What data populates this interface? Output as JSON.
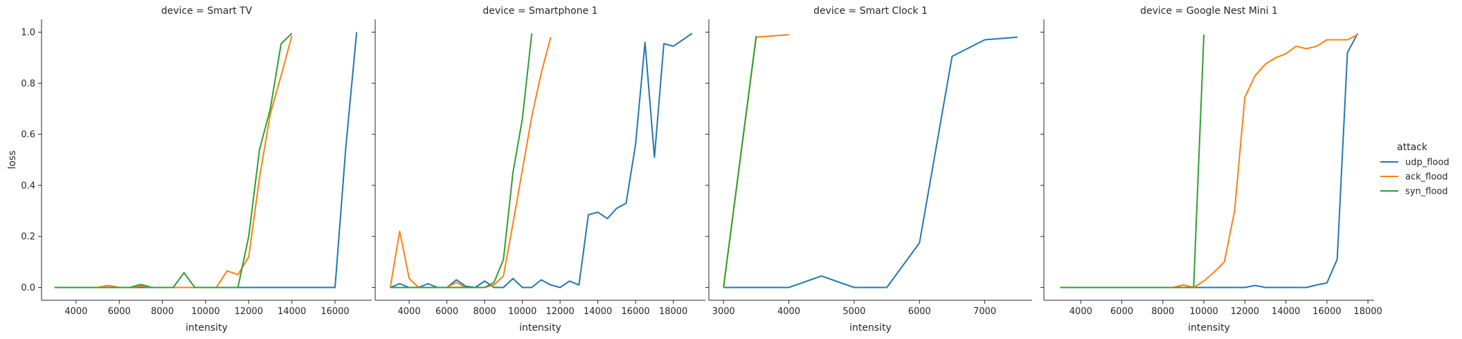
{
  "chart_data": {
    "type": "line",
    "xlabel": "intensity",
    "ylabel": "loss",
    "ylim": [
      -0.05,
      1.05
    ],
    "yticks": [
      0.0,
      0.2,
      0.4,
      0.6,
      0.8,
      1.0
    ],
    "ytick_labels": [
      "0.0",
      "0.2",
      "0.4",
      "0.6",
      "0.8",
      "1.0"
    ],
    "sharey": true,
    "grid": false,
    "legend": {
      "title": "attack",
      "placement": "right",
      "entries": [
        {
          "name": "udp_flood",
          "color": "#1f77b4"
        },
        {
          "name": "ack_flood",
          "color": "#ff7f0e"
        },
        {
          "name": "syn_flood",
          "color": "#2ca02c"
        }
      ]
    },
    "facets": [
      {
        "title": "device = Smart TV",
        "xlim": [
          2400,
          17700
        ],
        "xticks": [
          4000,
          6000,
          8000,
          10000,
          12000,
          14000,
          16000
        ],
        "series": [
          {
            "name": "udp_flood",
            "x": [
              3000,
              4000,
              5000,
              6000,
              7000,
              8000,
              9000,
              10000,
              11000,
              12000,
              13000,
              14000,
              15000,
              16000,
              16500,
              17000
            ],
            "y": [
              0,
              0,
              0,
              0,
              0,
              0,
              0,
              0,
              0,
              0,
              0,
              0,
              0,
              0,
              0.55,
              1.0
            ]
          },
          {
            "name": "ack_flood",
            "x": [
              3000,
              3500,
              4000,
              4500,
              5000,
              5500,
              6000,
              6500,
              7000,
              7500,
              8000,
              8500,
              9000,
              9500,
              10000,
              10500,
              11000,
              11500,
              12000,
              12500,
              13000,
              13500,
              14000
            ],
            "y": [
              0,
              0,
              0,
              0,
              0,
              0.008,
              0,
              0,
              0.006,
              0,
              0,
              0,
              0,
              0,
              0,
              0,
              0.065,
              0.05,
              0.12,
              0.43,
              0.68,
              0.83,
              0.985
            ]
          },
          {
            "name": "syn_flood",
            "x": [
              3000,
              3500,
              4000,
              4500,
              5000,
              5500,
              6000,
              6500,
              7000,
              7500,
              8000,
              8500,
              9000,
              9500,
              10000,
              10500,
              11000,
              11500,
              12000,
              12500,
              13000,
              13500,
              14000
            ],
            "y": [
              0,
              0,
              0,
              0,
              0,
              0,
              0,
              0,
              0.012,
              0,
              0,
              0,
              0.058,
              0,
              0,
              0,
              0,
              0,
              0.2,
              0.54,
              0.7,
              0.955,
              0.995
            ]
          }
        ]
      },
      {
        "title": "device = Smartphone 1",
        "xlim": [
          2200,
          19700
        ],
        "xticks": [
          4000,
          6000,
          8000,
          10000,
          12000,
          14000,
          16000,
          18000
        ],
        "series": [
          {
            "name": "udp_flood",
            "x": [
              3000,
              3500,
              4000,
              4500,
              5000,
              5500,
              6000,
              6500,
              7000,
              7500,
              8000,
              8500,
              9000,
              9500,
              10000,
              10500,
              11000,
              11500,
              12000,
              12500,
              13000,
              13500,
              14000,
              14500,
              15000,
              15500,
              16000,
              16500,
              17000,
              17500,
              18000,
              19000
            ],
            "y": [
              0,
              0.015,
              0,
              0,
              0.015,
              0,
              0,
              0.03,
              0.005,
              0,
              0.025,
              0,
              0,
              0.035,
              0,
              0,
              0.03,
              0.01,
              0,
              0.025,
              0.01,
              0.285,
              0.295,
              0.27,
              0.31,
              0.33,
              0.56,
              0.96,
              0.51,
              0.955,
              0.945,
              0.995
            ]
          },
          {
            "name": "ack_flood",
            "x": [
              3000,
              3500,
              4000,
              4500,
              5000,
              5500,
              6000,
              6500,
              7000,
              7500,
              8000,
              8500,
              9000,
              9500,
              10000,
              10500,
              11000,
              11500
            ],
            "y": [
              0,
              0.22,
              0.035,
              0,
              0,
              0,
              0,
              0.02,
              0,
              0,
              0,
              0.01,
              0.045,
              0.25,
              0.46,
              0.67,
              0.84,
              0.98
            ]
          },
          {
            "name": "syn_flood",
            "x": [
              3000,
              3500,
              4000,
              4500,
              5000,
              5500,
              6000,
              6500,
              7000,
              7500,
              8000,
              8500,
              9000,
              9500,
              10000,
              10500
            ],
            "y": [
              0,
              0,
              0,
              0,
              0,
              0,
              0,
              0,
              0,
              0,
              0,
              0.02,
              0.11,
              0.45,
              0.66,
              0.995
            ]
          }
        ]
      },
      {
        "title": "device = Smart Clock 1",
        "xlim": [
          2775,
          7725
        ],
        "xticks": [
          3000,
          4000,
          5000,
          6000,
          7000
        ],
        "series": [
          {
            "name": "udp_flood",
            "x": [
              3000,
              3500,
              4000,
              4500,
              5000,
              5500,
              6000,
              6500,
              7000,
              7500
            ],
            "y": [
              0,
              0,
              0,
              0.045,
              0,
              0,
              0.175,
              0.905,
              0.97,
              0.98
            ]
          },
          {
            "name": "ack_flood",
            "x": [
              3000,
              3500,
              4000
            ],
            "y": [
              0,
              0.98,
              0.99
            ]
          },
          {
            "name": "syn_flood",
            "x": [
              3000,
              3500
            ],
            "y": [
              0,
              0.985
            ]
          }
        ]
      },
      {
        "title": "device = Google Nest Mini 1",
        "xlim": [
          2200,
          18300
        ],
        "xticks": [
          4000,
          6000,
          8000,
          10000,
          12000,
          14000,
          16000,
          18000
        ],
        "series": [
          {
            "name": "udp_flood",
            "x": [
              3000,
              4000,
              5000,
              6000,
              7000,
              8000,
              9000,
              10000,
              11000,
              12000,
              12500,
              13000,
              14000,
              15000,
              15500,
              16000,
              16500,
              17000,
              17500
            ],
            "y": [
              0,
              0,
              0,
              0,
              0,
              0,
              0,
              0,
              0,
              0,
              0.008,
              0,
              0,
              0,
              0.01,
              0.018,
              0.11,
              0.92,
              0.995
            ]
          },
          {
            "name": "ack_flood",
            "x": [
              3000,
              4000,
              5000,
              6000,
              7000,
              8000,
              8500,
              9000,
              9500,
              10000,
              10500,
              11000,
              11500,
              12000,
              12500,
              13000,
              13500,
              14000,
              14500,
              15000,
              15500,
              16000,
              16500,
              17000,
              17500
            ],
            "y": [
              0,
              0,
              0,
              0,
              0,
              0,
              0,
              0.01,
              0,
              0.025,
              0.06,
              0.1,
              0.3,
              0.745,
              0.83,
              0.875,
              0.9,
              0.915,
              0.945,
              0.935,
              0.945,
              0.97,
              0.97,
              0.97,
              0.99
            ]
          },
          {
            "name": "syn_flood",
            "x": [
              3000,
              4000,
              5000,
              6000,
              7000,
              8000,
              9000,
              9500,
              10000
            ],
            "y": [
              0,
              0,
              0,
              0,
              0,
              0,
              0,
              0,
              0.99
            ]
          }
        ]
      }
    ]
  }
}
